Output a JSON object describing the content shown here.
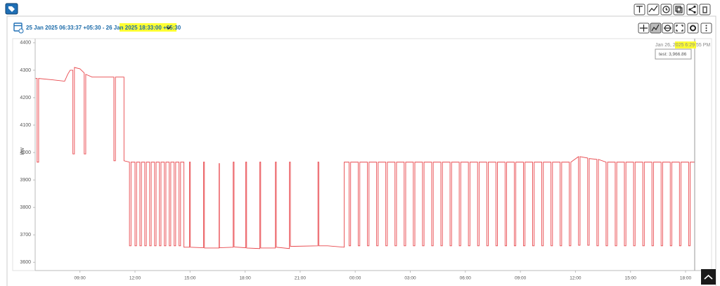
{
  "header": {
    "date_range": "25 Jan 2025 06:33:37 +05:30 - 26 Jan 2025 18:33:00 +05:30"
  },
  "tooltip": {
    "title": "Jan 26, 2025 6:29:55 PM",
    "label": "test: 3,966.86"
  },
  "chart_data": {
    "type": "line",
    "y_label": "kW",
    "color": "#e8464b",
    "grid": false,
    "xlim": [
      "2025-01-25T06:33:37",
      "2025-01-26T19:25"
    ],
    "xticks": [
      {
        "value": "2025-01-25T09:00",
        "label": "09:00"
      },
      {
        "value": "2025-01-25T12:00",
        "label": "12:00"
      },
      {
        "value": "2025-01-25T15:00",
        "label": "15:00"
      },
      {
        "value": "2025-01-25T18:00",
        "label": "18:00"
      },
      {
        "value": "2025-01-25T21:00",
        "label": "21:00"
      },
      {
        "value": "2025-01-26T00:00",
        "label": "00:00"
      },
      {
        "value": "2025-01-26T03:00",
        "label": "03:00"
      },
      {
        "value": "2025-01-26T06:00",
        "label": "06:00"
      },
      {
        "value": "2025-01-26T09:00",
        "label": "09:00"
      },
      {
        "value": "2025-01-26T12:00",
        "label": "12:00"
      },
      {
        "value": "2025-01-26T15:00",
        "label": "15:00"
      },
      {
        "value": "2025-01-26T18:00",
        "label": "18:00"
      }
    ],
    "ylim": [
      3570,
      4415
    ],
    "yticks": [
      3600,
      3700,
      3800,
      3900,
      4000,
      4100,
      4200,
      4300,
      4400
    ],
    "x": [
      "2025-01-25T06:35",
      "2025-01-25T06:40",
      "2025-01-25T06:40",
      "2025-01-25T06:45",
      "2025-01-25T06:45",
      "2025-01-25T07:30",
      "2025-01-25T08:10",
      "2025-01-25T08:20",
      "2025-01-25T08:28",
      "2025-01-25T08:37",
      "2025-01-25T08:37",
      "2025-01-25T08:42",
      "2025-01-25T08:42",
      "2025-01-25T09:00",
      "2025-01-25T09:14",
      "2025-01-25T09:14",
      "2025-01-25T09:19",
      "2025-01-25T09:19",
      "2025-01-25T09:40",
      "2025-01-25T10:20",
      "2025-01-25T10:51",
      "2025-01-25T10:51",
      "2025-01-25T10:56",
      "2025-01-25T10:56",
      "2025-01-25T11:24",
      "2025-01-25T11:24",
      "2025-01-25T11:42",
      "2025-01-25T11:42",
      "2025-01-25T11:47",
      "2025-01-25T11:47",
      "2025-01-25T12:00",
      "2025-01-25T12:00",
      "2025-01-25T12:05",
      "2025-01-25T12:05",
      "2025-01-25T12:16",
      "2025-01-25T12:16",
      "2025-01-25T12:21",
      "2025-01-25T12:21",
      "2025-01-25T12:32",
      "2025-01-25T12:32",
      "2025-01-25T12:37",
      "2025-01-25T12:37",
      "2025-01-25T12:48",
      "2025-01-25T12:48",
      "2025-01-25T12:53",
      "2025-01-25T12:53",
      "2025-01-25T13:04",
      "2025-01-25T13:04",
      "2025-01-25T13:09",
      "2025-01-25T13:09",
      "2025-01-25T13:20",
      "2025-01-25T13:20",
      "2025-01-25T13:25",
      "2025-01-25T13:25",
      "2025-01-25T13:36",
      "2025-01-25T13:36",
      "2025-01-25T13:41",
      "2025-01-25T13:41",
      "2025-01-25T13:52",
      "2025-01-25T13:52",
      "2025-01-25T13:57",
      "2025-01-25T13:57",
      "2025-01-25T14:08",
      "2025-01-25T14:08",
      "2025-01-25T14:13",
      "2025-01-25T14:13",
      "2025-01-25T14:24",
      "2025-01-25T14:24",
      "2025-01-25T14:29",
      "2025-01-25T14:29",
      "2025-01-25T14:40",
      "2025-01-25T14:40",
      "2025-01-25T14:58",
      "2025-01-25T14:58",
      "2025-01-25T15:01",
      "2025-01-25T15:01",
      "2025-01-25T15:44",
      "2025-01-25T15:44",
      "2025-01-25T15:47",
      "2025-01-25T15:47",
      "2025-01-25T16:35",
      "2025-01-25T16:35",
      "2025-01-25T16:36",
      "2025-01-25T16:36",
      "2025-01-25T17:21",
      "2025-01-25T17:21",
      "2025-01-25T17:24",
      "2025-01-25T17:24",
      "2025-01-25T18:02",
      "2025-01-25T18:02",
      "2025-01-25T18:05",
      "2025-01-25T18:05",
      "2025-01-25T18:48",
      "2025-01-25T18:48",
      "2025-01-25T18:51",
      "2025-01-25T18:51",
      "2025-01-25T19:39",
      "2025-01-25T19:39",
      "2025-01-25T19:42",
      "2025-01-25T19:42",
      "2025-01-25T20:25",
      "2025-01-25T20:25",
      "2025-01-25T20:28",
      "2025-01-25T20:28",
      "2025-01-25T21:58",
      "2025-01-25T21:58",
      "2025-01-25T22:01",
      "2025-01-25T22:01",
      "2025-01-25T22:30",
      "2025-01-25T23:24",
      "2025-01-25T23:24",
      "2025-01-25T23:40",
      "2025-01-25T23:40",
      "2025-01-25T23:45",
      "2025-01-25T23:45",
      "2025-01-26T00:10",
      "2025-01-26T00:10",
      "2025-01-26T00:15",
      "2025-01-26T00:15",
      "2025-01-26T00:40",
      "2025-01-26T00:40",
      "2025-01-26T00:45",
      "2025-01-26T00:45",
      "2025-01-26T01:10",
      "2025-01-26T01:10",
      "2025-01-26T01:15",
      "2025-01-26T01:15",
      "2025-01-26T01:40",
      "2025-01-26T01:40",
      "2025-01-26T01:45",
      "2025-01-26T01:45",
      "2025-01-26T02:10",
      "2025-01-26T02:10",
      "2025-01-26T02:15",
      "2025-01-26T02:15",
      "2025-01-26T02:40",
      "2025-01-26T02:40",
      "2025-01-26T02:45",
      "2025-01-26T02:45",
      "2025-01-26T03:10",
      "2025-01-26T03:10",
      "2025-01-26T03:15",
      "2025-01-26T03:15",
      "2025-01-26T03:40",
      "2025-01-26T03:40",
      "2025-01-26T03:45",
      "2025-01-26T03:45",
      "2025-01-26T04:10",
      "2025-01-26T04:10",
      "2025-01-26T04:15",
      "2025-01-26T04:15",
      "2025-01-26T04:40",
      "2025-01-26T04:40",
      "2025-01-26T04:45",
      "2025-01-26T04:45",
      "2025-01-26T05:10",
      "2025-01-26T05:10",
      "2025-01-26T05:15",
      "2025-01-26T05:15",
      "2025-01-26T05:40",
      "2025-01-26T05:40",
      "2025-01-26T05:45",
      "2025-01-26T05:45",
      "2025-01-26T06:10",
      "2025-01-26T06:10",
      "2025-01-26T06:15",
      "2025-01-26T06:15",
      "2025-01-26T06:40",
      "2025-01-26T06:40",
      "2025-01-26T06:45",
      "2025-01-26T06:45",
      "2025-01-26T07:10",
      "2025-01-26T07:10",
      "2025-01-26T07:15",
      "2025-01-26T07:15",
      "2025-01-26T07:40",
      "2025-01-26T07:40",
      "2025-01-26T07:45",
      "2025-01-26T07:45",
      "2025-01-26T08:10",
      "2025-01-26T08:10",
      "2025-01-26T08:15",
      "2025-01-26T08:15",
      "2025-01-26T08:40",
      "2025-01-26T08:40",
      "2025-01-26T08:45",
      "2025-01-26T08:45",
      "2025-01-26T09:10",
      "2025-01-26T09:10",
      "2025-01-26T09:15",
      "2025-01-26T09:15",
      "2025-01-26T09:40",
      "2025-01-26T09:40",
      "2025-01-26T09:45",
      "2025-01-26T09:45",
      "2025-01-26T10:10",
      "2025-01-26T10:10",
      "2025-01-26T10:15",
      "2025-01-26T10:15",
      "2025-01-26T10:40",
      "2025-01-26T10:40",
      "2025-01-26T10:45",
      "2025-01-26T10:45",
      "2025-01-26T11:10",
      "2025-01-26T11:10",
      "2025-01-26T11:15",
      "2025-01-26T11:15",
      "2025-01-26T11:40",
      "2025-01-26T11:40",
      "2025-01-26T11:45",
      "2025-01-26T11:45",
      "2025-01-26T12:10",
      "2025-01-26T12:10",
      "2025-01-26T12:15",
      "2025-01-26T12:15",
      "2025-01-26T12:40",
      "2025-01-26T12:40",
      "2025-01-26T12:45",
      "2025-01-26T12:45",
      "2025-01-26T13:10",
      "2025-01-26T13:10",
      "2025-01-26T13:15",
      "2025-01-26T13:15",
      "2025-01-26T13:40",
      "2025-01-26T13:40",
      "2025-01-26T13:45",
      "2025-01-26T13:45",
      "2025-01-26T14:10",
      "2025-01-26T14:10",
      "2025-01-26T14:15",
      "2025-01-26T14:15",
      "2025-01-26T14:40",
      "2025-01-26T14:40",
      "2025-01-26T14:45",
      "2025-01-26T14:45",
      "2025-01-26T15:10",
      "2025-01-26T15:10",
      "2025-01-26T15:15",
      "2025-01-26T15:15",
      "2025-01-26T15:40",
      "2025-01-26T15:40",
      "2025-01-26T15:45",
      "2025-01-26T15:45",
      "2025-01-26T16:10",
      "2025-01-26T16:10",
      "2025-01-26T16:15",
      "2025-01-26T16:15",
      "2025-01-26T16:40",
      "2025-01-26T16:40",
      "2025-01-26T16:45",
      "2025-01-26T16:45",
      "2025-01-26T17:10",
      "2025-01-26T17:10",
      "2025-01-26T17:15",
      "2025-01-26T17:15",
      "2025-01-26T17:40",
      "2025-01-26T17:40",
      "2025-01-26T17:45",
      "2025-01-26T17:45",
      "2025-01-26T18:10",
      "2025-01-26T18:10",
      "2025-01-26T18:15",
      "2025-01-26T18:15",
      "2025-01-26T18:30"
    ],
    "values": [
      4270,
      4270,
      3965,
      3965,
      4270,
      4265,
      4260,
      4285,
      4300,
      4300,
      3995,
      3995,
      4310,
      4305,
      4290,
      3995,
      3995,
      4285,
      4275,
      4275,
      4275,
      3970,
      3970,
      4275,
      4275,
      3970,
      3965,
      3660,
      3660,
      3965,
      3965,
      3660,
      3660,
      3965,
      3965,
      3660,
      3660,
      3965,
      3965,
      3660,
      3660,
      3965,
      3965,
      3660,
      3660,
      3965,
      3965,
      3660,
      3660,
      3965,
      3965,
      3660,
      3660,
      3965,
      3965,
      3660,
      3660,
      3965,
      3965,
      3660,
      3660,
      3965,
      3965,
      3660,
      3660,
      3965,
      3965,
      3660,
      3660,
      3965,
      3965,
      3655,
      3655,
      3965,
      3965,
      3655,
      3653,
      3965,
      3965,
      3652,
      3652,
      3960,
      3960,
      3653,
      3655,
      3965,
      3965,
      3656,
      3653,
      3965,
      3965,
      3652,
      3650,
      3965,
      3965,
      3652,
      3652,
      3965,
      3965,
      3655,
      3650,
      3965,
      3965,
      3658,
      3660,
      3965,
      3965,
      3660,
      3660,
      3655,
      3965,
      3965,
      3660,
      3660,
      3965,
      3965,
      3660,
      3660,
      3965,
      3965,
      3660,
      3660,
      3965,
      3965,
      3660,
      3660,
      3965,
      3965,
      3660,
      3660,
      3965,
      3965,
      3660,
      3660,
      3965,
      3965,
      3660,
      3660,
      3965,
      3965,
      3660,
      3660,
      3965,
      3965,
      3660,
      3660,
      3965,
      3965,
      3660,
      3660,
      3965,
      3965,
      3660,
      3660,
      3965,
      3965,
      3660,
      3660,
      3965,
      3965,
      3660,
      3660,
      3965,
      3965,
      3660,
      3660,
      3965,
      3965,
      3660,
      3660,
      3965,
      3965,
      3660,
      3660,
      3965,
      3965,
      3660,
      3660,
      3965,
      3965,
      3660,
      3660,
      3965,
      3965,
      3660,
      3660,
      3965,
      3965,
      3660,
      3660,
      3965,
      3965,
      3660,
      3660,
      3965,
      3965,
      3660,
      3660,
      3965,
      3965,
      3660,
      3660,
      3965,
      3965,
      3660,
      3660,
      3965,
      3965,
      3660,
      3660,
      3965,
      3985,
      3662,
      3662,
      3985,
      3980,
      3662,
      3662,
      3978,
      3975,
      3660,
      3660,
      3975,
      3965,
      3660,
      3660,
      3965,
      3965,
      3660,
      3660,
      3965,
      3965,
      3660,
      3660,
      3965,
      3965,
      3660,
      3660,
      3965,
      3965,
      3660,
      3660,
      3965,
      3965,
      3660,
      3660,
      3965,
      3965,
      3660,
      3660,
      3965,
      3965,
      3660,
      3660,
      3965,
      3965,
      3660,
      3660,
      3965,
      3965,
      3660,
      3660,
      3965,
      3965
    ]
  }
}
